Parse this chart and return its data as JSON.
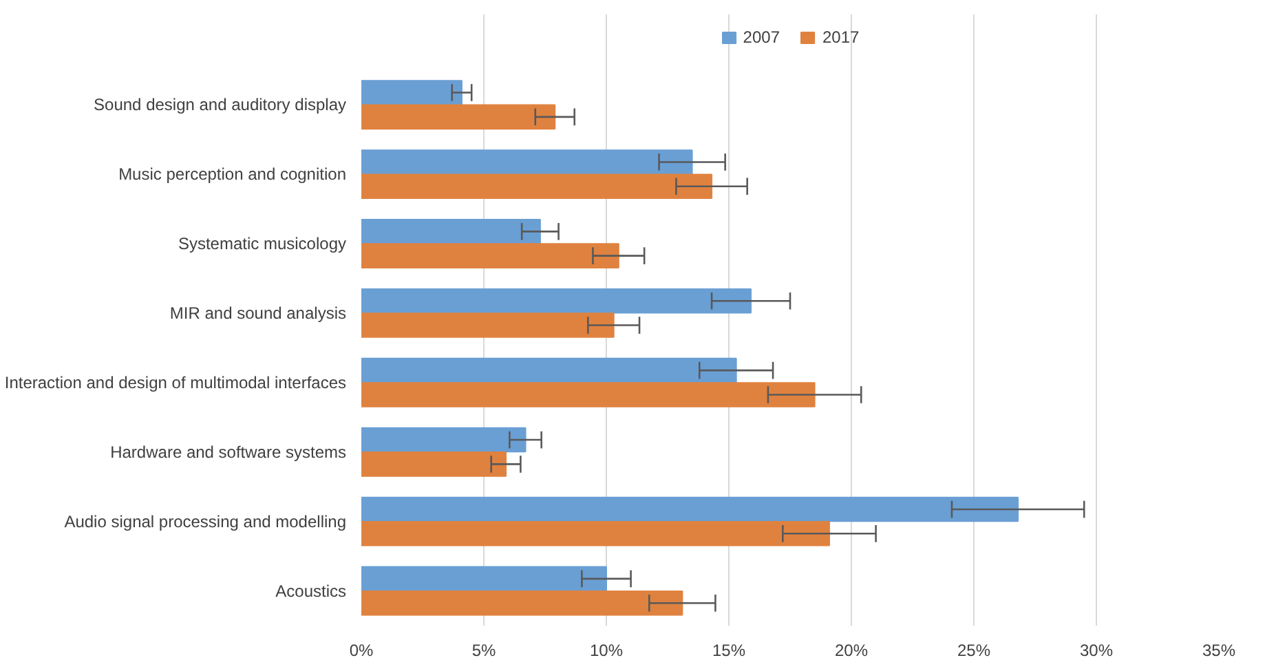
{
  "chart_data": {
    "type": "bar",
    "orientation": "horizontal",
    "categories": [
      "Sound design and auditory display",
      "Music perception and cognition",
      "Systematic musicology",
      "MIR and sound analysis",
      "Interaction and design of multimodal interfaces",
      "Hardware and software systems",
      "Audio signal processing and modelling",
      "Acoustics"
    ],
    "series": [
      {
        "name": "2007",
        "color": "#6a9fd4",
        "values": [
          4.1,
          13.5,
          7.3,
          15.9,
          15.3,
          6.7,
          26.8,
          10.0
        ],
        "errors": [
          0.4,
          1.35,
          0.75,
          1.6,
          1.5,
          0.65,
          2.7,
          1.0
        ]
      },
      {
        "name": "2017",
        "color": "#e0823f",
        "values": [
          7.9,
          14.3,
          10.5,
          10.3,
          18.5,
          5.9,
          19.1,
          13.1
        ],
        "errors": [
          0.8,
          1.45,
          1.05,
          1.05,
          1.9,
          0.6,
          1.9,
          1.35
        ]
      }
    ],
    "xlim": [
      0,
      35
    ],
    "xticks": [
      {
        "value": 0,
        "label": "0%"
      },
      {
        "value": 5,
        "label": "5%"
      },
      {
        "value": 10,
        "label": "10%"
      },
      {
        "value": 15,
        "label": "15%"
      },
      {
        "value": 20,
        "label": "20%"
      },
      {
        "value": 25,
        "label": "25%"
      },
      {
        "value": 30,
        "label": "30%"
      },
      {
        "value": 35,
        "label": "35%"
      }
    ],
    "grid": "x",
    "legend": "top"
  }
}
